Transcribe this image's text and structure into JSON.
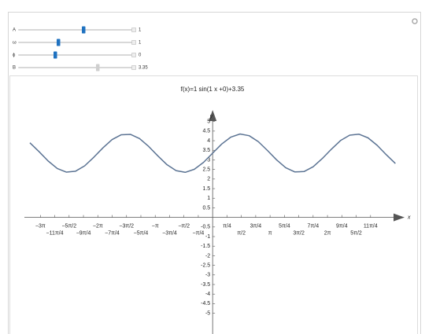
{
  "controls": [
    {
      "label": "A",
      "value": 1
    },
    {
      "label": "ω",
      "value": 1
    },
    {
      "label": "ϕ",
      "value": 0
    },
    {
      "label": "B",
      "value": 3.35
    }
  ],
  "chart_data": {
    "type": "line",
    "title": "f(x)=1 sin(1 x +0)+3.35",
    "x_label": "x",
    "y_label": "y",
    "x": [
      -10,
      -9.5,
      -9,
      -8.5,
      -8,
      -7.5,
      -7,
      -6.5,
      -6,
      -5.5,
      -5,
      -4.5,
      -4,
      -3.5,
      -3,
      -2.5,
      -2,
      -1.5,
      -1,
      -0.5,
      0,
      0.5,
      1,
      1.5,
      2,
      2.5,
      3,
      3.5,
      4,
      4.5,
      5,
      5.5,
      6,
      6.5,
      7,
      7.5,
      8,
      8.5,
      9,
      9.5,
      10
    ],
    "series": [
      {
        "name": "f(x)",
        "color": "#5b7393",
        "values": [
          3.89,
          3.43,
          2.94,
          2.55,
          2.36,
          2.41,
          2.69,
          3.14,
          3.63,
          4.06,
          4.31,
          4.33,
          4.11,
          3.7,
          3.21,
          2.75,
          2.44,
          2.35,
          2.51,
          2.87,
          3.35,
          3.83,
          4.19,
          4.35,
          4.26,
          3.95,
          3.49,
          3.0,
          2.59,
          2.37,
          2.39,
          2.64,
          3.07,
          3.56,
          4.01,
          4.29,
          4.34,
          4.15,
          3.76,
          3.27,
          2.81
        ]
      }
    ],
    "xlim": [
      -10.3,
      10.5
    ],
    "ylim": [
      -6.0,
      5.6
    ],
    "xticks": [
      {
        "value": -9.4248,
        "label": "−3π"
      },
      {
        "value": -8.6394,
        "label": "−11π/4"
      },
      {
        "value": -7.854,
        "label": "−5π/2"
      },
      {
        "value": -7.0686,
        "label": "−9π/4"
      },
      {
        "value": -6.2832,
        "label": "−2π"
      },
      {
        "value": -5.4978,
        "label": "−7π/4"
      },
      {
        "value": -4.7124,
        "label": "−3π/2"
      },
      {
        "value": -3.927,
        "label": "−5π/4"
      },
      {
        "value": -3.1416,
        "label": "−π"
      },
      {
        "value": -2.3562,
        "label": "−3π/4"
      },
      {
        "value": -1.5708,
        "label": "−π/2"
      },
      {
        "value": -0.7854,
        "label": "−π/4"
      },
      {
        "value": 0.7854,
        "label": "π/4"
      },
      {
        "value": 1.5708,
        "label": "π/2"
      },
      {
        "value": 2.3562,
        "label": "3π/4"
      },
      {
        "value": 3.1416,
        "label": "π"
      },
      {
        "value": 3.927,
        "label": "5π/4"
      },
      {
        "value": 4.7124,
        "label": "3π/2"
      },
      {
        "value": 5.4978,
        "label": "7π/4"
      },
      {
        "value": 6.2832,
        "label": "2π"
      },
      {
        "value": 7.0686,
        "label": "9π/4"
      },
      {
        "value": 7.854,
        "label": "5π/2"
      },
      {
        "value": 8.6394,
        "label": "11π/4"
      }
    ],
    "yticks": [
      5,
      4.5,
      4,
      3.5,
      3,
      2.5,
      2,
      1.5,
      1,
      0.5,
      -0.5,
      -1,
      -1.5,
      -2,
      -2.5,
      -3,
      -3.5,
      -4,
      -4.5,
      -5
    ]
  }
}
